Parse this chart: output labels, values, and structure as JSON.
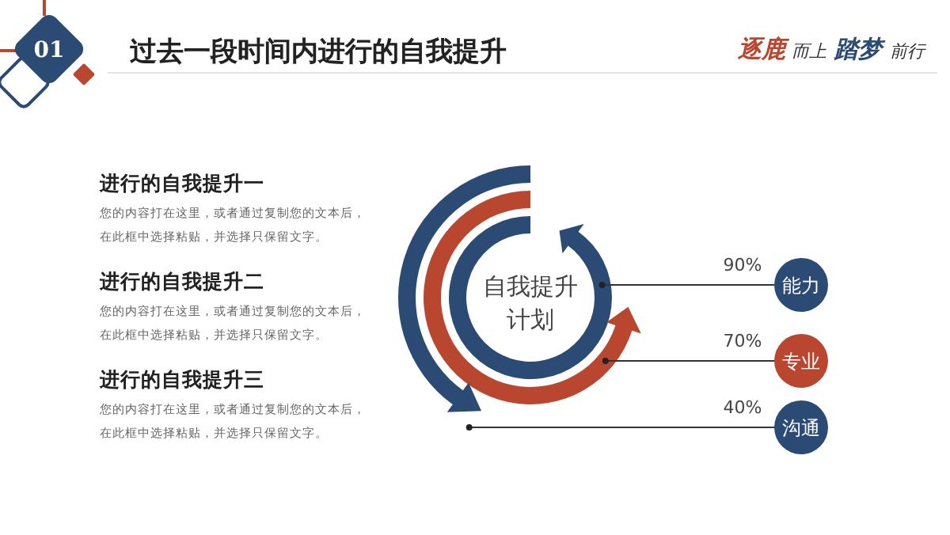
{
  "chart_data": {
    "type": "other",
    "title": "过去一段时间内进行的自我提升",
    "categories": [
      "能力",
      "专业",
      "沟通"
    ],
    "values": [
      90,
      70,
      40
    ],
    "value_labels": [
      "90%",
      "70%",
      "40%"
    ],
    "colors": [
      "#2b4a74",
      "#b9472f",
      "#2b4a74"
    ],
    "annotations": [
      "01",
      "逐鹿",
      "而上",
      "踏梦",
      "前行",
      "自我提升",
      "计划",
      "进行的自我提升一",
      "您的内容打在这里，或者通过复制您的文本后，",
      "在此框中选择粘贴，并选择只保留文字。",
      "进行的自我提升二",
      "您的内容打在这里，或者通过复制您的文本后，",
      "在此框中选择粘贴，并选择只保留文字。",
      "进行的自我提升三",
      "您的内容打在这里，或者通过复制您的文本后，",
      "在此框中选择粘贴，并选择只保留文字。"
    ]
  }
}
